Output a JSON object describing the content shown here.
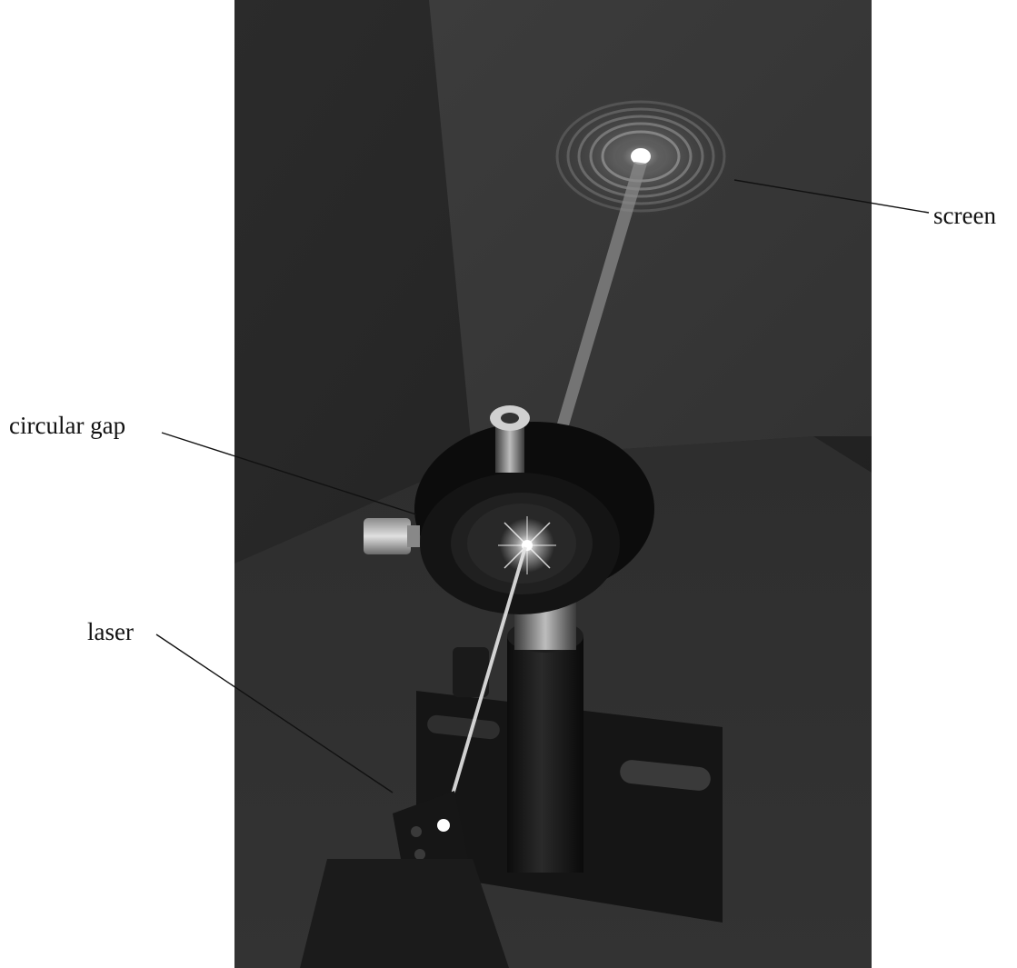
{
  "labels": {
    "screen": "screen",
    "circular_gap": "circular gap",
    "laser": "laser"
  },
  "colors": {
    "background": "#ffffff",
    "photo_dark": "#262626",
    "screen_panel": "#3a3a3a",
    "beam": "#9a9a9a",
    "leader_line": "#111111"
  },
  "icons": {
    "diffraction_pattern": "concentric-rings",
    "laser_source": "laser-box",
    "aperture_mount": "lens-ring"
  }
}
